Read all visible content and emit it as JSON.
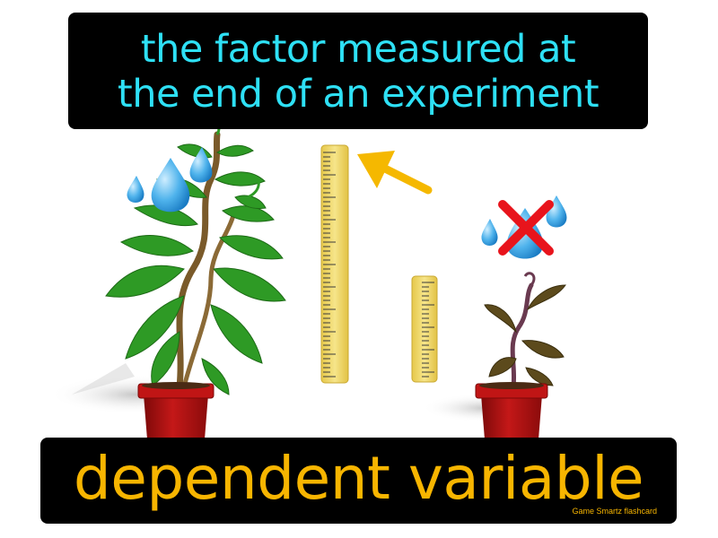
{
  "definition": {
    "line1": "the factor measured at",
    "line2": "the end of an experiment"
  },
  "term": "dependent variable",
  "brand": "Game  Smartz  flashcard",
  "colors": {
    "definition_text": "#2ee0f5",
    "term_text": "#f7b500",
    "box_background": "#000000",
    "pot": "#b01010",
    "leaf_healthy": "#2e9a25",
    "leaf_wilted": "#5c4a1c",
    "ruler": "#f2dc6a",
    "arrow": "#f5b800",
    "cross": "#e8141c",
    "water_drop": "#3aa0e0"
  },
  "icons": [
    "water-drop-icon",
    "ruler-icon",
    "arrow-icon",
    "no-water-cross-icon",
    "plant-pot-icon"
  ]
}
